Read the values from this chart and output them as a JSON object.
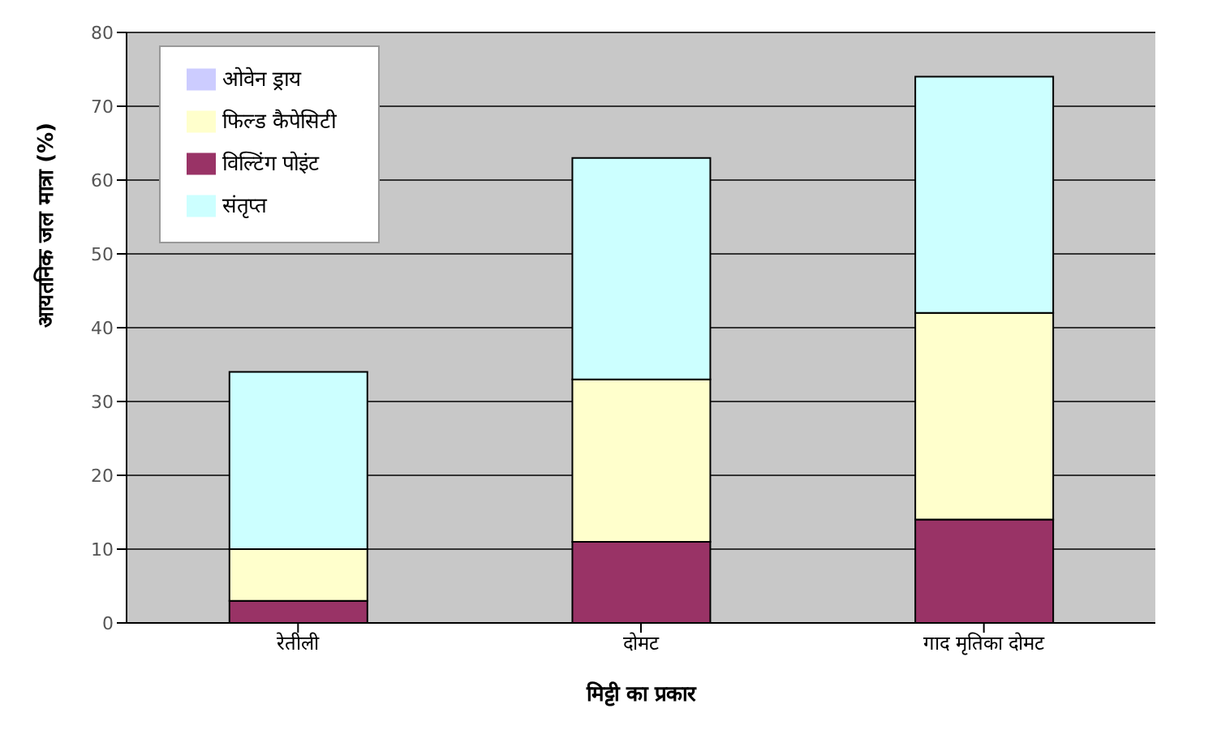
{
  "chart_data": {
    "type": "bar",
    "stacked": true,
    "ylabel": "आयतनिक जल मात्रा (%)",
    "xlabel": "मिट्टी का प्रकार",
    "categories": [
      "रेतीली",
      "दोमट",
      "गाद मृतिका दोमट"
    ],
    "series": [
      {
        "name": "ओवेन ड्राय",
        "color": "#ccccff",
        "values": [
          0,
          0,
          0
        ]
      },
      {
        "name": "विल्टिंग पोइंट",
        "color": "#993366",
        "values": [
          3,
          11,
          14
        ]
      },
      {
        "name": "फिल्ड कैपेसिटी",
        "color": "#ffffcc",
        "values": [
          7,
          22,
          28
        ]
      },
      {
        "name": "संतृप्त",
        "color": "#ccffff",
        "values": [
          24,
          30,
          32
        ]
      }
    ],
    "ylim": [
      0,
      80
    ],
    "yticks": [
      0,
      10,
      20,
      30,
      40,
      50,
      60,
      70,
      80
    ],
    "grid": "y",
    "legend": "top left"
  }
}
